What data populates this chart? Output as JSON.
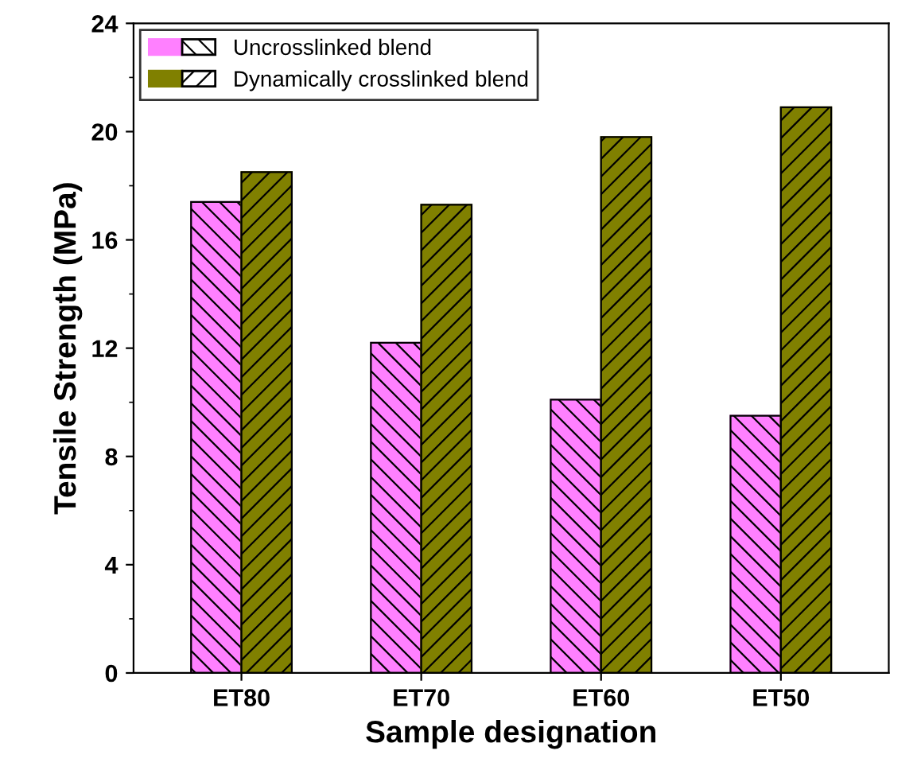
{
  "chart_data": {
    "type": "bar",
    "xlabel": "Sample designation",
    "ylabel": "Tensile Strength (MPa)",
    "categories": [
      "ET80",
      "ET70",
      "ET60",
      "ET50"
    ],
    "series": [
      {
        "name": "Uncrosslinked blend",
        "color": "#ff80ff",
        "values": [
          17.4,
          12.2,
          10.1,
          9.5
        ]
      },
      {
        "name": "Dynamically crosslinked blend",
        "color": "#808000",
        "values": [
          18.5,
          17.3,
          19.8,
          20.9
        ]
      }
    ],
    "ylim": [
      0,
      24
    ],
    "yticks": [
      0,
      4,
      8,
      12,
      16,
      20,
      24
    ],
    "grid": false,
    "legend": "top left"
  }
}
